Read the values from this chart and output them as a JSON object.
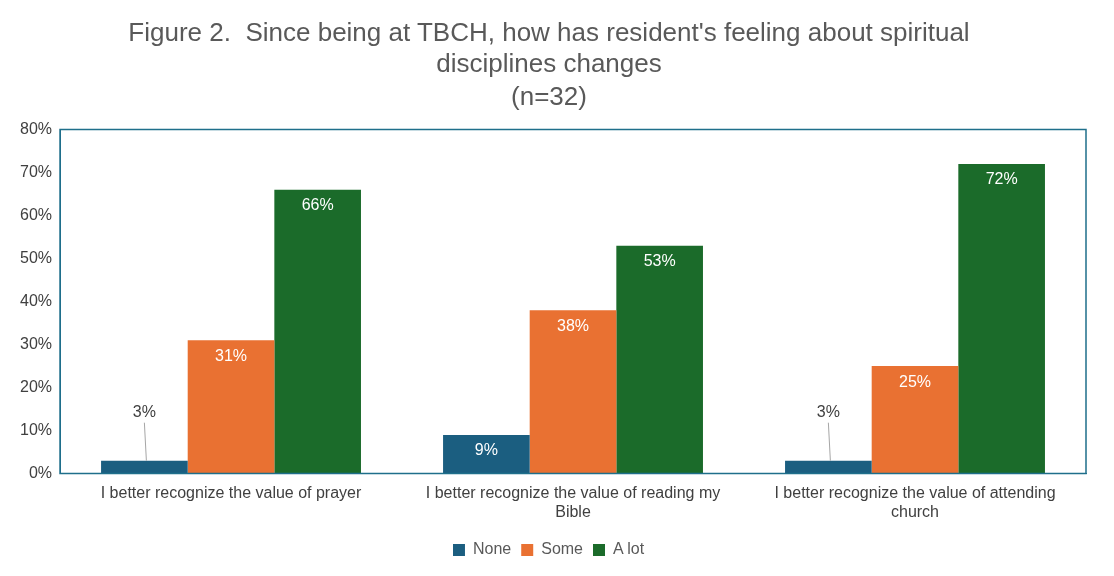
{
  "chart_data": {
    "type": "bar",
    "title": "Figure 2.  Since being at TBCH, how has resident's feeling about spiritual disciplines changes",
    "subtitle": "(n=32)",
    "categories": [
      "I better recognize the value of prayer",
      "I better recognize the value of reading my Bible",
      "I better recognize the value of attending church"
    ],
    "series": [
      {
        "name": "None",
        "color": "#1b5e80",
        "values": [
          3,
          9,
          3
        ],
        "value_labels": [
          "3%",
          "9%",
          "3%"
        ]
      },
      {
        "name": "Some",
        "color": "#e97132",
        "values": [
          31,
          38,
          25
        ],
        "value_labels": [
          "31%",
          "38%",
          "25%"
        ]
      },
      {
        "name": "A lot",
        "color": "#1b6b2a",
        "values": [
          66,
          53,
          72
        ],
        "value_labels": [
          "66%",
          "53%",
          "72%"
        ]
      }
    ],
    "ylim": [
      0,
      80
    ],
    "yticks": [
      {
        "value": 0,
        "label": "0%"
      },
      {
        "value": 10,
        "label": "10%"
      },
      {
        "value": 20,
        "label": "20%"
      },
      {
        "value": 30,
        "label": "30%"
      },
      {
        "value": 40,
        "label": "40%"
      },
      {
        "value": 50,
        "label": "50%"
      },
      {
        "value": 60,
        "label": "60%"
      },
      {
        "value": 70,
        "label": "70%"
      },
      {
        "value": 80,
        "label": "80%"
      }
    ],
    "grid": false,
    "legend": "bottom"
  }
}
